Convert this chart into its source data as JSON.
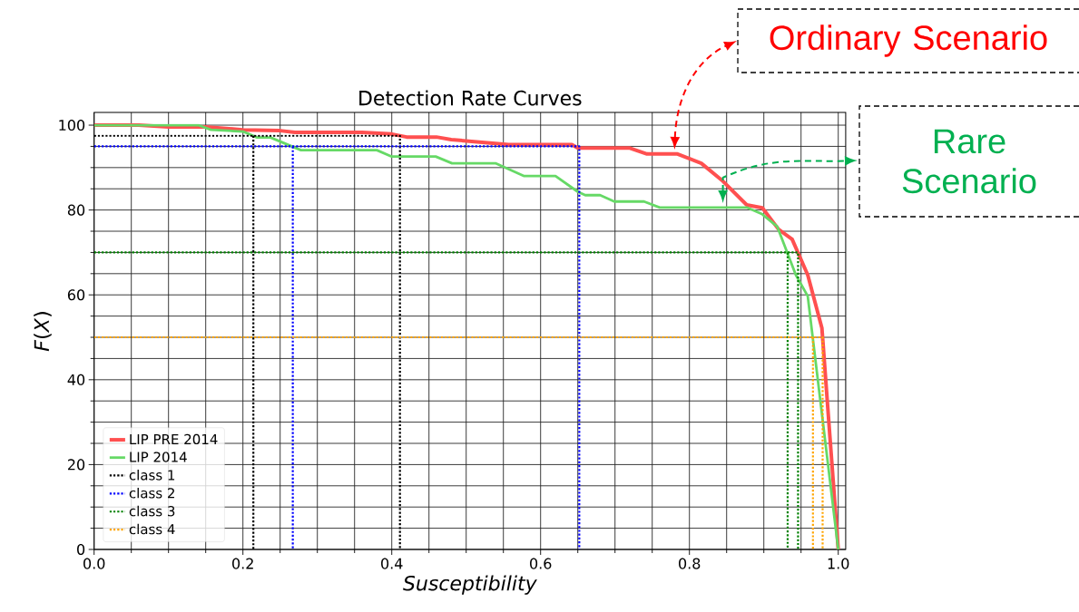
{
  "chart_data": {
    "type": "line",
    "title": "Detection Rate Curves",
    "xlabel": "Susceptibility",
    "ylabel": "*F*(*X*)",
    "xlim": [
      0,
      1.01
    ],
    "ylim": [
      0,
      103
    ],
    "xticks": [
      {
        "value": 0,
        "label": "0.0"
      },
      {
        "value": 0.2,
        "label": "0.2"
      },
      {
        "value": 0.4,
        "label": "0.4"
      },
      {
        "value": 0.6,
        "label": "0.6"
      },
      {
        "value": 0.8,
        "label": "0.8"
      },
      {
        "value": 1.0,
        "label": "1.0"
      }
    ],
    "yticks": [
      0,
      20,
      40,
      60,
      80,
      100
    ],
    "grid": true,
    "legend": "bottom left",
    "series": [
      {
        "name": "LIP PRE 2014",
        "color": "#ff5050",
        "line_style": "solid",
        "x": [
          0,
          0.06,
          0.1,
          0.15,
          0.2,
          0.25,
          0.27,
          0.36,
          0.4,
          0.42,
          0.46,
          0.48,
          0.557,
          0.642,
          0.65,
          0.72,
          0.743,
          0.784,
          0.816,
          0.845,
          0.877,
          0.898,
          0.92,
          0.938,
          0.959,
          0.978,
          1.0
        ],
        "values": [
          100,
          100,
          99.6,
          99.6,
          98.9,
          98.7,
          98.3,
          98.3,
          97.9,
          97.2,
          97.2,
          96.6,
          95.4,
          95.4,
          94.6,
          94.6,
          93.2,
          93.2,
          91.0,
          86.8,
          81.2,
          80.5,
          75.4,
          73.1,
          64.7,
          52.2,
          0
        ]
      },
      {
        "name": "LIP 2014",
        "color": "#66d966",
        "line_style": "solid",
        "x": [
          0,
          0.14,
          0.157,
          0.2,
          0.219,
          0.237,
          0.278,
          0.38,
          0.4,
          0.459,
          0.481,
          0.54,
          0.578,
          0.62,
          0.65,
          0.66,
          0.68,
          0.699,
          0.739,
          0.76,
          0.877,
          0.898,
          0.918,
          0.943,
          0.959,
          1.0
        ],
        "values": [
          100,
          100,
          98.9,
          98.5,
          97.1,
          97.1,
          94.1,
          94.1,
          92.6,
          92.6,
          91.0,
          91.0,
          88.0,
          88.0,
          84.3,
          83.5,
          83.5,
          82.0,
          82.0,
          80.6,
          80.6,
          79.0,
          76.1,
          64.7,
          59.7,
          0
        ]
      },
      {
        "name": "class 1",
        "color": "#000000",
        "line_style": "dotted",
        "x": [
          0,
          0.411,
          0.411,
          null,
          0.214,
          0.214
        ],
        "values": [
          97.5,
          97.5,
          0,
          null,
          97.5,
          0
        ]
      },
      {
        "name": "class 2",
        "color": "#0000ff",
        "line_style": "dotted",
        "x": [
          0,
          0.652,
          0.652,
          null,
          0.267,
          0.267
        ],
        "values": [
          95,
          95,
          0,
          null,
          95,
          0
        ]
      },
      {
        "name": "class 3",
        "color": "#008000",
        "line_style": "dotted",
        "x": [
          0,
          0.946,
          0.946,
          null,
          0.932,
          0.932
        ],
        "values": [
          70,
          70,
          0,
          null,
          70,
          0
        ]
      },
      {
        "name": "class 4",
        "color": "#ffa500",
        "line_style": "dotted",
        "x": [
          0,
          0.979,
          0.979,
          null,
          0.966,
          0.966
        ],
        "values": [
          50,
          50,
          0,
          null,
          50,
          0
        ]
      }
    ],
    "annotations": [
      "Ordinary Scenario",
      "Rare Scenario"
    ]
  }
}
